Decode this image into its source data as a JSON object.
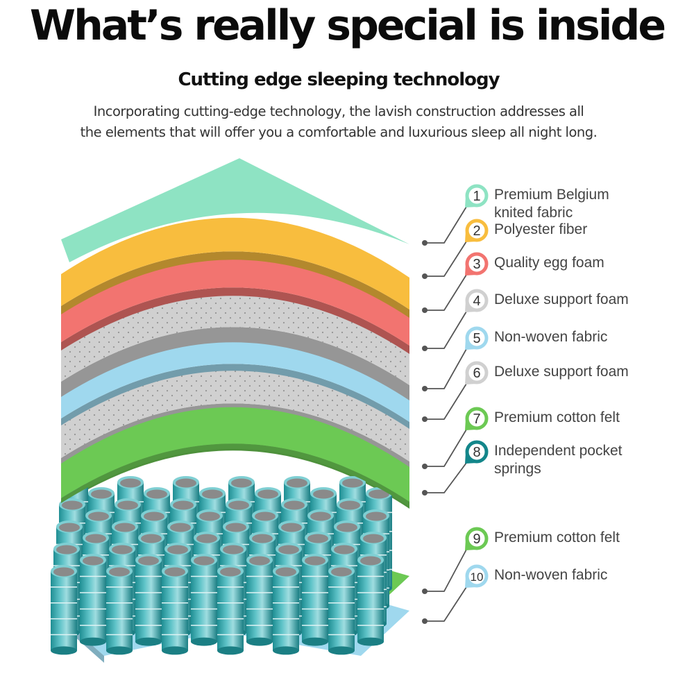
{
  "header": {
    "title": "What’s really special is inside",
    "subtitle": "Cutting edge sleeping technology",
    "description_lines": [
      "Incorporating cutting-edge technology, the lavish construction addresses all",
      "the elements that will offer you a comfortable and luxurious sleep all night long."
    ]
  },
  "layers": [
    {
      "number": "1",
      "label_lines": [
        "Premium Belgium",
        "knited fabric"
      ],
      "color": "#8ee3c3"
    },
    {
      "number": "2",
      "label_lines": [
        "Polyester fiber"
      ],
      "color": "#f8bd3e"
    },
    {
      "number": "3",
      "label_lines": [
        "Quality egg foam"
      ],
      "color": "#f27470"
    },
    {
      "number": "4",
      "label_lines": [
        "Deluxe support foam"
      ],
      "color": "#d0d0d0"
    },
    {
      "number": "5",
      "label_lines": [
        "Non-woven fabric"
      ],
      "color": "#9fd8ee"
    },
    {
      "number": "6",
      "label_lines": [
        "Deluxe support foam"
      ],
      "color": "#d0d0d0"
    },
    {
      "number": "7",
      "label_lines": [
        "Premium cotton felt"
      ],
      "color": "#6cc954"
    },
    {
      "number": "8",
      "label_lines": [
        "Independent pocket",
        "springs"
      ],
      "color": "#13868a"
    },
    {
      "number": "9",
      "label_lines": [
        "Premium cotton felt"
      ],
      "color": "#6cc954"
    },
    {
      "number": "10",
      "label_lines": [
        "Non-woven fabric"
      ],
      "color": "#9fd8ee"
    }
  ]
}
